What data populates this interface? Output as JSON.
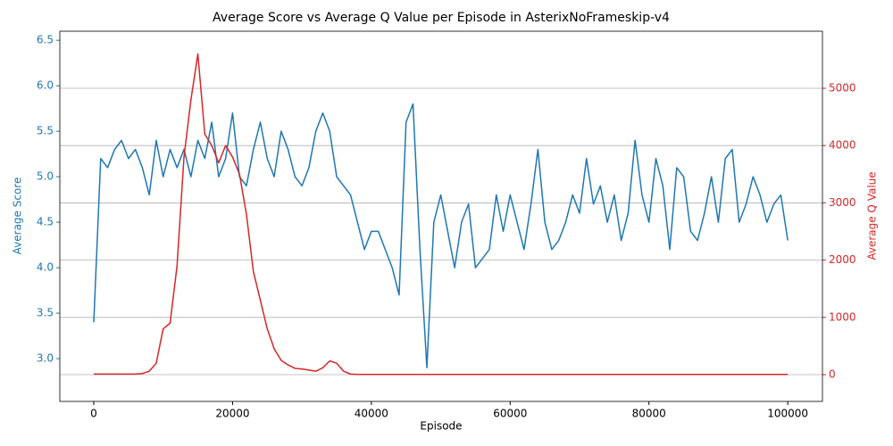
{
  "chart_data": {
    "type": "line",
    "title": "Average Score vs Average Q Value per Episode in AsterixNoFrameskip-v4",
    "xlabel": "Episode",
    "ylabel": "Average Score",
    "y2label": "Average Q Value",
    "x": [
      0,
      1000,
      2000,
      3000,
      4000,
      5000,
      6000,
      7000,
      8000,
      9000,
      10000,
      11000,
      12000,
      13000,
      14000,
      15000,
      16000,
      17000,
      18000,
      19000,
      20000,
      21000,
      22000,
      23000,
      24000,
      25000,
      26000,
      27000,
      28000,
      29000,
      30000,
      31000,
      32000,
      33000,
      34000,
      35000,
      36000,
      37000,
      38000,
      39000,
      40000,
      41000,
      42000,
      43000,
      44000,
      45000,
      46000,
      47000,
      48000,
      49000,
      50000,
      51000,
      52000,
      53000,
      54000,
      55000,
      56000,
      57000,
      58000,
      59000,
      60000,
      61000,
      62000,
      63000,
      64000,
      65000,
      66000,
      67000,
      68000,
      69000,
      70000,
      71000,
      72000,
      73000,
      74000,
      75000,
      76000,
      77000,
      78000,
      79000,
      80000,
      81000,
      82000,
      83000,
      84000,
      85000,
      86000,
      87000,
      88000,
      89000,
      90000,
      91000,
      92000,
      93000,
      94000,
      95000,
      96000,
      97000,
      98000,
      99000,
      100000
    ],
    "series": [
      {
        "color": "#1f77b4",
        "axis": "y",
        "values": [
          3.4,
          5.2,
          5.1,
          5.3,
          5.4,
          5.2,
          5.3,
          5.1,
          4.8,
          5.4,
          5.0,
          5.3,
          5.1,
          5.3,
          5.0,
          5.4,
          5.2,
          5.6,
          5.0,
          5.2,
          5.7,
          5.0,
          4.9,
          5.3,
          5.6,
          5.2,
          5.0,
          5.5,
          5.3,
          5.0,
          4.9,
          5.1,
          5.5,
          5.7,
          5.5,
          5.0,
          4.9,
          4.8,
          4.5,
          4.2,
          4.4,
          4.4,
          4.2,
          4.0,
          3.7,
          5.6,
          5.8,
          4.2,
          2.9,
          4.5,
          4.8,
          4.4,
          4.0,
          4.5,
          4.7,
          4.0,
          4.1,
          4.2,
          4.8,
          4.4,
          4.8,
          4.5,
          4.2,
          4.7,
          5.3,
          4.5,
          4.2,
          4.3,
          4.5,
          4.8,
          4.6,
          5.2,
          4.7,
          4.9,
          4.5,
          4.8,
          4.3,
          4.6,
          5.4,
          4.8,
          4.5,
          5.2,
          4.9,
          4.2,
          5.1,
          5.0,
          4.4,
          4.3,
          4.6,
          5.0,
          4.5,
          5.2,
          5.3,
          4.5,
          4.7,
          5.0,
          4.8,
          4.5,
          4.7,
          4.8,
          4.3
        ]
      },
      {
        "color": "#d62728",
        "axis": "y2",
        "values": [
          10,
          10,
          10,
          10,
          10,
          10,
          10,
          20,
          60,
          200,
          800,
          900,
          1900,
          3800,
          4800,
          5600,
          4200,
          4000,
          3700,
          4000,
          3800,
          3500,
          2800,
          1800,
          1300,
          800,
          450,
          250,
          170,
          110,
          100,
          80,
          60,
          120,
          240,
          200,
          60,
          10,
          5,
          5,
          5,
          5,
          5,
          5,
          5,
          5,
          5,
          5,
          5,
          5,
          5,
          5,
          5,
          5,
          5,
          5,
          5,
          5,
          5,
          5,
          5,
          5,
          5,
          5,
          5,
          5,
          5,
          5,
          5,
          5,
          5,
          5,
          5,
          5,
          5,
          5,
          5,
          5,
          5,
          5,
          5,
          5,
          5,
          5,
          5,
          5,
          5,
          5,
          5,
          5,
          5,
          5,
          5,
          5,
          5,
          5,
          5,
          5,
          5,
          5,
          5
        ]
      }
    ],
    "xlim": [
      -4890,
      105000
    ],
    "xticks": [
      0,
      20000,
      40000,
      60000,
      80000,
      100000
    ],
    "ylim": [
      2.53,
      6.6
    ],
    "yticks": [
      {
        "value": 3,
        "label": "3.0"
      },
      {
        "value": 3.5,
        "label": "3.5"
      },
      {
        "value": 4,
        "label": "4.0"
      },
      {
        "value": 4.5,
        "label": "4.5"
      },
      {
        "value": 5,
        "label": "5.0"
      },
      {
        "value": 5.5,
        "label": "5.5"
      },
      {
        "value": 6,
        "label": "6.0"
      },
      {
        "value": 6.5,
        "label": "6.5"
      }
    ],
    "y2lim": [
      -467,
      5997
    ],
    "y2ticks": [
      0,
      1000,
      2000,
      3000,
      4000,
      5000
    ],
    "grid": "y2",
    "ylabel_color": "#1f77b4",
    "y2label_color": "#d62728"
  }
}
